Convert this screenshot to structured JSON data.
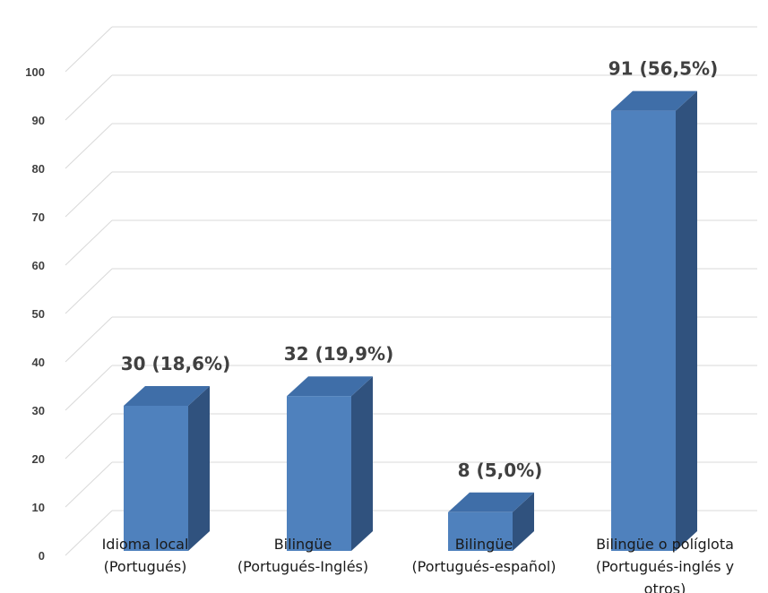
{
  "chart_data": {
    "type": "bar",
    "style": "3d-column",
    "categories": [
      [
        "Idioma local",
        "(Portugués)"
      ],
      [
        "Bilingüe",
        "(Portugués-Inglés)"
      ],
      [
        "Bilingüe",
        "(Portugués-español)"
      ],
      [
        "Bilingüe o políglota",
        "(Portugués-inglés y",
        "otros)"
      ]
    ],
    "values": [
      30,
      32,
      8,
      91
    ],
    "data_labels": [
      "30  (18,6%)",
      "32 (19,9%)",
      "8 (5,0%)",
      "91 (56,5%)"
    ],
    "yticks": [
      0,
      10,
      20,
      30,
      40,
      50,
      60,
      70,
      80,
      90,
      100
    ],
    "ylim": [
      0,
      100
    ],
    "grid": true,
    "legend": "none",
    "title": "",
    "xlabel": "",
    "ylabel": ""
  },
  "colors": {
    "bar_front": "#4f81bd",
    "bar_top": "#3f6ea8",
    "bar_side": "#30527e",
    "grid": "#d9d9d9",
    "text": "#404040"
  }
}
